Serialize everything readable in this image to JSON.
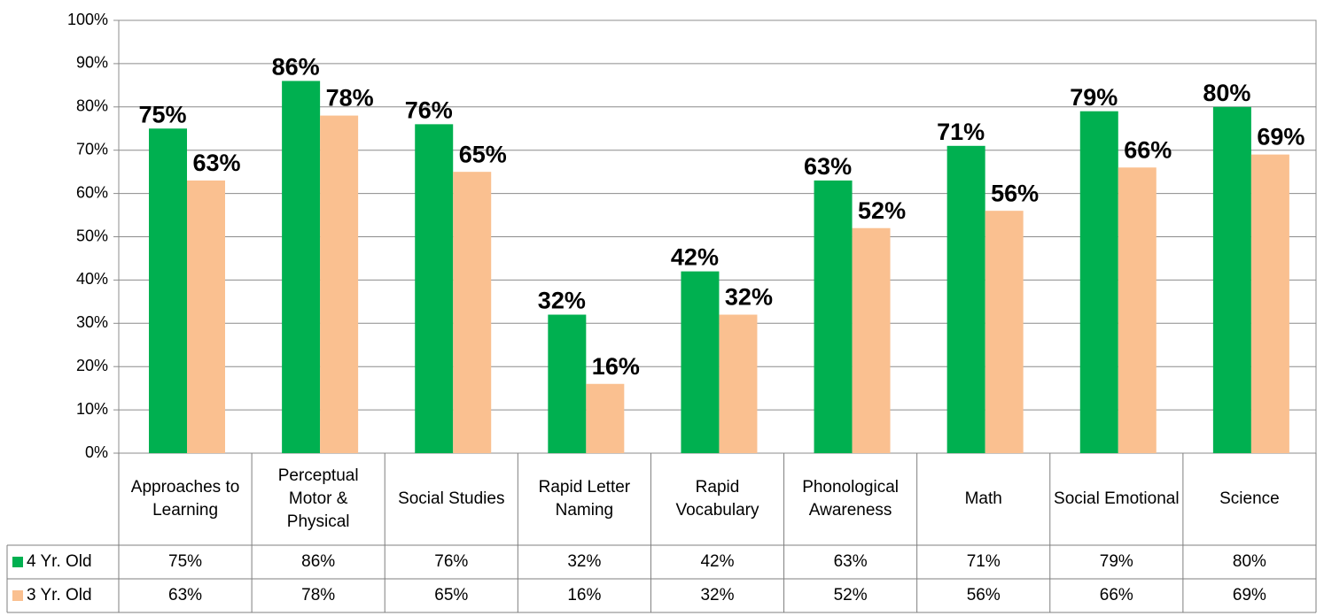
{
  "chart_data": {
    "type": "bar",
    "categories": [
      "Approaches to Learning",
      "Perceptual Motor & Physical",
      "Social Studies",
      "Rapid Letter Naming",
      "Rapid Vocabulary",
      "Phonological Awareness",
      "Math",
      "Social Emotional",
      "Science"
    ],
    "series": [
      {
        "name": "4 Yr. Old",
        "color": "#00b050",
        "values": [
          75,
          86,
          76,
          32,
          42,
          63,
          71,
          79,
          80
        ],
        "value_labels": [
          "75%",
          "86%",
          "76%",
          "32%",
          "42%",
          "63%",
          "71%",
          "79%",
          "80%"
        ]
      },
      {
        "name": "3 Yr. Old",
        "color": "#fac090",
        "values": [
          63,
          78,
          65,
          16,
          32,
          52,
          56,
          66,
          69
        ],
        "value_labels": [
          "63%",
          "78%",
          "65%",
          "16%",
          "32%",
          "52%",
          "56%",
          "66%",
          "69%"
        ]
      }
    ],
    "ylim": [
      0,
      100
    ],
    "yticks": [
      {
        "value": 0,
        "label": "0%"
      },
      {
        "value": 10,
        "label": "10%"
      },
      {
        "value": 20,
        "label": "20%"
      },
      {
        "value": 30,
        "label": "30%"
      },
      {
        "value": 40,
        "label": "40%"
      },
      {
        "value": 50,
        "label": "50%"
      },
      {
        "value": 60,
        "label": "60%"
      },
      {
        "value": 70,
        "label": "70%"
      },
      {
        "value": 80,
        "label": "80%"
      },
      {
        "value": 90,
        "label": "90%"
      },
      {
        "value": 100,
        "label": "100%"
      }
    ],
    "grid": true
  }
}
